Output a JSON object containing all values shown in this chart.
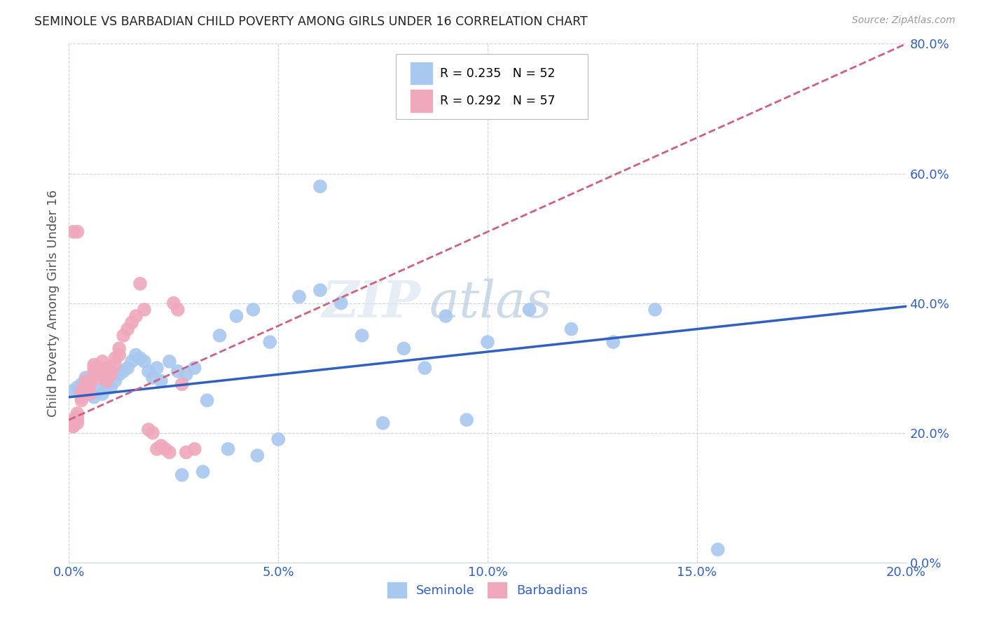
{
  "title": "SEMINOLE VS BARBADIAN CHILD POVERTY AMONG GIRLS UNDER 16 CORRELATION CHART",
  "source": "Source: ZipAtlas.com",
  "ylabel": "Child Poverty Among Girls Under 16",
  "xlim": [
    0.0,
    0.2
  ],
  "ylim": [
    0.0,
    0.8
  ],
  "xticks": [
    0.0,
    0.05,
    0.1,
    0.15,
    0.2
  ],
  "yticks": [
    0.0,
    0.2,
    0.4,
    0.6,
    0.8
  ],
  "seminole_R": 0.235,
  "seminole_N": 52,
  "barbadian_R": 0.292,
  "barbadian_N": 57,
  "seminole_color": "#a8c8f0",
  "barbadian_color": "#f0a8bc",
  "trendline_seminole_color": "#3060c0",
  "trendline_barbadian_color": "#d06080",
  "watermark_zip": "ZIP",
  "watermark_atlas": "atlas",
  "seminole_x": [
    0.001,
    0.002,
    0.003,
    0.004,
    0.005,
    0.006,
    0.007,
    0.008,
    0.009,
    0.01,
    0.011,
    0.012,
    0.013,
    0.014,
    0.015,
    0.016,
    0.017,
    0.018,
    0.019,
    0.02,
    0.021,
    0.022,
    0.024,
    0.026,
    0.028,
    0.03,
    0.033,
    0.036,
    0.04,
    0.044,
    0.048,
    0.055,
    0.06,
    0.065,
    0.07,
    0.08,
    0.09,
    0.1,
    0.11,
    0.12,
    0.13,
    0.14,
    0.155,
    0.06,
    0.075,
    0.085,
    0.095,
    0.05,
    0.045,
    0.038,
    0.032,
    0.027
  ],
  "seminole_y": [
    0.265,
    0.27,
    0.275,
    0.285,
    0.26,
    0.255,
    0.265,
    0.26,
    0.275,
    0.27,
    0.28,
    0.29,
    0.295,
    0.3,
    0.31,
    0.32,
    0.315,
    0.31,
    0.295,
    0.285,
    0.3,
    0.28,
    0.31,
    0.295,
    0.29,
    0.3,
    0.25,
    0.35,
    0.38,
    0.39,
    0.34,
    0.41,
    0.42,
    0.4,
    0.35,
    0.33,
    0.38,
    0.34,
    0.39,
    0.36,
    0.34,
    0.39,
    0.02,
    0.58,
    0.215,
    0.3,
    0.22,
    0.19,
    0.165,
    0.175,
    0.14,
    0.135
  ],
  "barbadian_x": [
    0.0,
    0.001,
    0.001,
    0.001,
    0.001,
    0.001,
    0.001,
    0.002,
    0.002,
    0.002,
    0.002,
    0.002,
    0.003,
    0.003,
    0.003,
    0.003,
    0.004,
    0.004,
    0.004,
    0.004,
    0.005,
    0.005,
    0.005,
    0.006,
    0.006,
    0.006,
    0.007,
    0.007,
    0.007,
    0.008,
    0.008,
    0.008,
    0.009,
    0.009,
    0.01,
    0.01,
    0.011,
    0.011,
    0.012,
    0.012,
    0.013,
    0.014,
    0.015,
    0.016,
    0.017,
    0.018,
    0.019,
    0.02,
    0.021,
    0.022,
    0.023,
    0.024,
    0.025,
    0.026,
    0.027,
    0.028,
    0.03
  ],
  "barbadian_y": [
    0.215,
    0.21,
    0.215,
    0.22,
    0.21,
    0.215,
    0.51,
    0.51,
    0.22,
    0.215,
    0.225,
    0.23,
    0.26,
    0.265,
    0.255,
    0.25,
    0.27,
    0.265,
    0.28,
    0.275,
    0.275,
    0.28,
    0.26,
    0.3,
    0.295,
    0.305,
    0.29,
    0.3,
    0.285,
    0.31,
    0.29,
    0.295,
    0.3,
    0.28,
    0.29,
    0.295,
    0.305,
    0.315,
    0.32,
    0.33,
    0.35,
    0.36,
    0.37,
    0.38,
    0.43,
    0.39,
    0.205,
    0.2,
    0.175,
    0.18,
    0.175,
    0.17,
    0.4,
    0.39,
    0.275,
    0.17,
    0.175
  ],
  "barbadian_trendline_x0": 0.0,
  "barbadian_trendline_x1": 0.2,
  "barbadian_trendline_y0": 0.22,
  "barbadian_trendline_y1": 0.8,
  "seminole_trendline_x0": 0.0,
  "seminole_trendline_x1": 0.2,
  "seminole_trendline_y0": 0.255,
  "seminole_trendline_y1": 0.395
}
